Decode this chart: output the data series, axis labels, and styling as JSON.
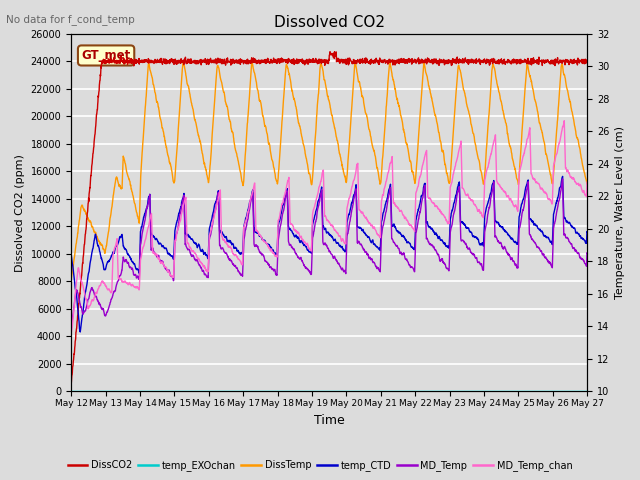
{
  "title": "Dissolved CO2",
  "top_left_text": "No data for f_cond_temp",
  "xlabel": "Time",
  "ylabel_left": "Dissolved CO2 (ppm)",
  "ylabel_right": "Temperature, Water Level (cm)",
  "ylim_left": [
    0,
    26000
  ],
  "ylim_right": [
    10,
    32
  ],
  "yticks_left": [
    0,
    2000,
    4000,
    6000,
    8000,
    10000,
    12000,
    14000,
    16000,
    18000,
    20000,
    22000,
    24000,
    26000
  ],
  "yticks_right": [
    10,
    12,
    14,
    16,
    18,
    20,
    22,
    24,
    26,
    28,
    30,
    32
  ],
  "bg_color": "#dcdcdc",
  "legend_label_box": "GT_met",
  "legend_box_facecolor": "#ffffcc",
  "legend_box_edgecolor": "#8b4513",
  "series_colors": {
    "DissCO2": "#cc0000",
    "temp_EXOchan": "#00cccc",
    "DissTemp": "#ff9900",
    "temp_CTD": "#0000cc",
    "MD_Temp": "#9900cc",
    "MD_Temp_chan": "#ff66cc"
  },
  "x_tick_labels": [
    "May 12",
    "May 13",
    "May 14",
    "May 15",
    "May 16",
    "May 17",
    "May 18",
    "May 19",
    "May 20",
    "May 21",
    "May 22",
    "May 23",
    "May 24",
    "May 25",
    "May 26",
    "May 27"
  ],
  "figsize": [
    6.4,
    4.8
  ],
  "dpi": 100
}
